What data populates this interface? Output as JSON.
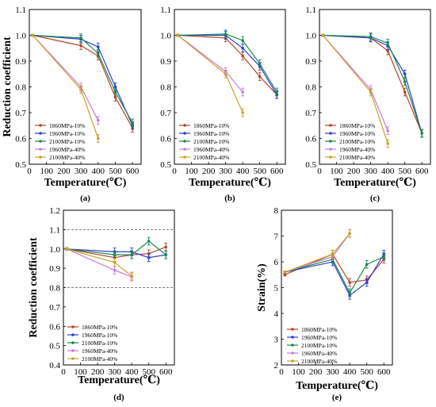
{
  "chart_data": [
    {
      "panel_label": "(a)",
      "type": "line",
      "xlabel": "Temperature(℃)",
      "ylabel": "Reduction coefficient",
      "xlim": [
        0,
        650
      ],
      "ylim": [
        0.5,
        1.1
      ],
      "xticks": [
        "0",
        "100",
        "200",
        "300",
        "400",
        "500",
        "600"
      ],
      "yticks": [
        "0.5",
        "0.6",
        "0.7",
        "0.8",
        "0.9",
        "1.0",
        "1.1"
      ],
      "legend_position": "bottom-left",
      "reference_lines": [],
      "series": [
        {
          "name": "1860MPa-10%",
          "color": "#b5452a",
          "x": [
            20,
            300,
            400,
            500,
            600
          ],
          "y": [
            1.0,
            0.96,
            0.92,
            0.76,
            0.64
          ]
        },
        {
          "name": "1960MPa-10%",
          "color": "#2e3fd1",
          "x": [
            20,
            300,
            400,
            500,
            600
          ],
          "y": [
            1.0,
            0.985,
            0.955,
            0.8,
            0.65
          ]
        },
        {
          "name": "2100MPa-10%",
          "color": "#1b8a4e",
          "x": [
            20,
            300,
            400,
            500,
            600
          ],
          "y": [
            1.0,
            0.99,
            0.93,
            0.78,
            0.66
          ]
        },
        {
          "name": "1960MPa-40%",
          "color": "#c77be0",
          "x": [
            20,
            300,
            400
          ],
          "y": [
            1.0,
            0.8,
            0.67
          ]
        },
        {
          "name": "2100MPa-40%",
          "color": "#c9a22a",
          "x": [
            20,
            300,
            400
          ],
          "y": [
            1.0,
            0.79,
            0.6
          ]
        }
      ]
    },
    {
      "panel_label": "(b)",
      "type": "line",
      "xlabel": "Temperature(℃)",
      "ylabel": "",
      "xlim": [
        0,
        650
      ],
      "ylim": [
        0.5,
        1.1
      ],
      "xticks": [
        "0",
        "100",
        "200",
        "300",
        "400",
        "500",
        "600"
      ],
      "yticks": [
        "0.5",
        "0.6",
        "0.7",
        "0.8",
        "0.9",
        "1.0",
        "1.1"
      ],
      "legend_position": "bottom-left",
      "reference_lines": [],
      "series": [
        {
          "name": "1860MPa-10%",
          "color": "#b5452a",
          "x": [
            20,
            300,
            400,
            500,
            600
          ],
          "y": [
            1.0,
            0.99,
            0.92,
            0.84,
            0.77
          ]
        },
        {
          "name": "1960MPa-10%",
          "color": "#2e3fd1",
          "x": [
            20,
            300,
            400,
            500,
            600
          ],
          "y": [
            1.0,
            1.0,
            0.95,
            0.88,
            0.77
          ]
        },
        {
          "name": "2100MPa-10%",
          "color": "#1b8a4e",
          "x": [
            20,
            300,
            400,
            500,
            600
          ],
          "y": [
            1.0,
            1.005,
            0.98,
            0.89,
            0.78
          ]
        },
        {
          "name": "1960MPa-40%",
          "color": "#c77be0",
          "x": [
            20,
            300,
            400
          ],
          "y": [
            1.0,
            0.86,
            0.78
          ]
        },
        {
          "name": "2100MPa-40%",
          "color": "#c9a22a",
          "x": [
            20,
            300,
            400
          ],
          "y": [
            1.0,
            0.85,
            0.7
          ]
        }
      ]
    },
    {
      "panel_label": "(c)",
      "type": "line",
      "xlabel": "Temperature(℃)",
      "ylabel": "",
      "xlim": [
        0,
        650
      ],
      "ylim": [
        0.5,
        1.1
      ],
      "xticks": [
        "0",
        "100",
        "200",
        "300",
        "400",
        "500",
        "600"
      ],
      "yticks": [
        "0.5",
        "0.6",
        "0.7",
        "0.8",
        "0.9",
        "1.0",
        "1.1"
      ],
      "legend_position": "bottom-left",
      "reference_lines": [],
      "series": [
        {
          "name": "1860MPa-10%",
          "color": "#b5452a",
          "x": [
            20,
            300,
            400,
            500,
            600
          ],
          "y": [
            1.0,
            0.99,
            0.94,
            0.78,
            0.62
          ]
        },
        {
          "name": "1960MPa-10%",
          "color": "#2e3fd1",
          "x": [
            20,
            300,
            400,
            500,
            600
          ],
          "y": [
            1.0,
            0.99,
            0.96,
            0.85,
            0.62
          ]
        },
        {
          "name": "2100MPa-10%",
          "color": "#1b8a4e",
          "x": [
            20,
            300,
            400,
            500,
            600
          ],
          "y": [
            1.0,
            0.995,
            0.97,
            0.82,
            0.62
          ]
        },
        {
          "name": "1960MPa-40%",
          "color": "#c77be0",
          "x": [
            20,
            300,
            400
          ],
          "y": [
            1.0,
            0.79,
            0.63
          ]
        },
        {
          "name": "2100MPa-40%",
          "color": "#c9a22a",
          "x": [
            20,
            300,
            400
          ],
          "y": [
            1.0,
            0.78,
            0.58
          ]
        }
      ]
    },
    {
      "panel_label": "(d)",
      "type": "line",
      "xlabel": "Temperature(℃)",
      "ylabel": "Reduction coefficient",
      "xlim": [
        0,
        650
      ],
      "ylim": [
        0.4,
        1.2
      ],
      "xticks": [
        "0",
        "100",
        "200",
        "300",
        "400",
        "500",
        "600"
      ],
      "yticks": [
        "0.4",
        "0.5",
        "0.6",
        "0.7",
        "0.8",
        "0.9",
        "1.0",
        "1.1",
        "1.2"
      ],
      "legend_position": "bottom-left",
      "reference_lines": [
        1.1,
        0.8
      ],
      "series": [
        {
          "name": "1860MPa-10%",
          "color": "#b5452a",
          "x": [
            20,
            300,
            400,
            500,
            600
          ],
          "y": [
            1.0,
            0.955,
            0.97,
            0.975,
            1.01
          ]
        },
        {
          "name": "1960MPa-10%",
          "color": "#2e3fd1",
          "x": [
            20,
            300,
            400,
            500,
            600
          ],
          "y": [
            1.0,
            0.985,
            0.985,
            0.955,
            0.97
          ]
        },
        {
          "name": "2100MPa-10%",
          "color": "#1b8a4e",
          "x": [
            20,
            300,
            400,
            500,
            600
          ],
          "y": [
            1.0,
            0.97,
            0.97,
            1.04,
            0.97
          ]
        },
        {
          "name": "1960MPa-40%",
          "color": "#c77be0",
          "x": [
            20,
            300,
            400
          ],
          "y": [
            1.0,
            0.89,
            0.855
          ]
        },
        {
          "name": "2100MPa-40%",
          "color": "#c9a22a",
          "x": [
            20,
            300,
            400
          ],
          "y": [
            1.0,
            0.93,
            0.86
          ]
        }
      ]
    },
    {
      "panel_label": "(e)",
      "type": "line",
      "xlabel": "Temperature(℃)",
      "ylabel": "Strain(%)",
      "xlim": [
        0,
        650
      ],
      "ylim": [
        2,
        8
      ],
      "xticks": [
        "0",
        "100",
        "200",
        "300",
        "400",
        "500",
        "600"
      ],
      "yticks": [
        "2",
        "3",
        "4",
        "5",
        "6",
        "7",
        "8"
      ],
      "legend_position": "bottom-left",
      "reference_lines": [],
      "series": [
        {
          "name": "1860MPa-10%",
          "color": "#b5452a",
          "x": [
            20,
            300,
            400,
            500,
            600
          ],
          "y": [
            5.5,
            6.3,
            5.2,
            5.3,
            6.1
          ]
        },
        {
          "name": "1960MPa-10%",
          "color": "#2e3fd1",
          "x": [
            20,
            300,
            400,
            500,
            600
          ],
          "y": [
            5.6,
            6.0,
            4.7,
            5.2,
            6.3
          ]
        },
        {
          "name": "2100MPa-10%",
          "color": "#1b8a4e",
          "x": [
            20,
            300,
            400,
            500,
            600
          ],
          "y": [
            5.6,
            6.1,
            4.8,
            5.9,
            6.2
          ]
        },
        {
          "name": "1960MPa-40%",
          "color": "#c77be0",
          "x": [
            20,
            300,
            400
          ],
          "y": [
            5.6,
            6.2,
            7.1
          ]
        },
        {
          "name": "2100MPa-40%",
          "color": "#c9a22a",
          "x": [
            20,
            300,
            400
          ],
          "y": [
            5.6,
            6.3,
            7.1
          ]
        }
      ]
    }
  ]
}
